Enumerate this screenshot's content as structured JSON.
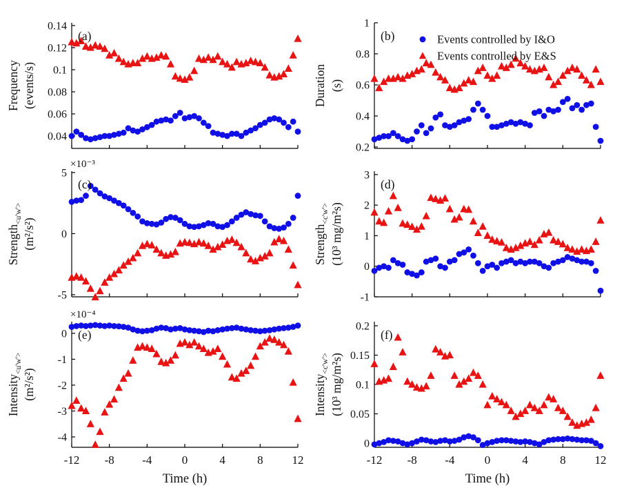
{
  "figure": {
    "colors": {
      "io_blue": "#1010E6",
      "es_red": "#E81414",
      "axis": "#000000",
      "background": "#FFFFFF"
    },
    "legend": {
      "items": [
        {
          "marker": "circle-icon",
          "label": "Events controlled by I&O"
        },
        {
          "marker": "triangle-icon",
          "label": "Events controlled by E&S"
        }
      ]
    },
    "x_axis": {
      "title": "Time (h)",
      "tick_values": [
        -12,
        -8,
        -4,
        0,
        4,
        8,
        12
      ],
      "tick_labels": [
        "-12",
        "-8",
        "-4",
        "0",
        "4",
        "8",
        "12"
      ]
    }
  },
  "chart_data": {
    "type": "scatter",
    "xlabel": "Time (h)",
    "series_names": [
      "Events controlled by I&O",
      "Events controlled by E&S"
    ],
    "x_hours": [
      -12,
      -11.5,
      -11,
      -10.5,
      -10,
      -9.5,
      -9,
      -8.5,
      -8,
      -7.5,
      -7,
      -6.5,
      -6,
      -5.5,
      -5,
      -4.5,
      -4,
      -3.5,
      -3,
      -2.5,
      -2,
      -1.5,
      -1,
      -0.5,
      0,
      0.5,
      1,
      1.5,
      2,
      2.5,
      3,
      3.5,
      4,
      4.5,
      5,
      5.5,
      6,
      6.5,
      7,
      7.5,
      8,
      8.5,
      9,
      9.5,
      10,
      10.5,
      11,
      11.5,
      12
    ],
    "panels": [
      {
        "id": "a",
        "letter": "(a)",
        "ylabel": "Frequency",
        "ylabel_sub": "",
        "ylabel_units": "(events/s)",
        "exponent": "",
        "ylim": [
          0.02875,
          0.1425
        ],
        "yticks": [
          0.04,
          0.06,
          0.08,
          0.1,
          0.12,
          0.14
        ],
        "ytick_labels": [
          "0.04",
          "0.06",
          "0.08",
          "0.1",
          "0.12",
          "0.14"
        ],
        "io": [
          0.04,
          0.044,
          0.041,
          0.038,
          0.037,
          0.038,
          0.039,
          0.04,
          0.04,
          0.041,
          0.042,
          0.043,
          0.047,
          0.045,
          0.044,
          0.046,
          0.048,
          0.05,
          0.053,
          0.054,
          0.055,
          0.054,
          0.058,
          0.061,
          0.056,
          0.057,
          0.058,
          0.056,
          0.052,
          0.049,
          0.043,
          0.042,
          0.041,
          0.04,
          0.042,
          0.042,
          0.04,
          0.043,
          0.045,
          0.047,
          0.05,
          0.052,
          0.055,
          0.056,
          0.055,
          0.052,
          0.048,
          0.053,
          0.044
        ],
        "es": [
          0.125,
          0.124,
          0.126,
          0.121,
          0.12,
          0.122,
          0.121,
          0.119,
          0.113,
          0.115,
          0.11,
          0.107,
          0.105,
          0.106,
          0.106,
          0.11,
          0.112,
          0.11,
          0.111,
          0.113,
          0.112,
          0.105,
          0.094,
          0.092,
          0.091,
          0.093,
          0.099,
          0.11,
          0.109,
          0.111,
          0.109,
          0.112,
          0.107,
          0.105,
          0.102,
          0.107,
          0.105,
          0.106,
          0.108,
          0.107,
          0.106,
          0.102,
          0.095,
          0.093,
          0.094,
          0.096,
          0.101,
          0.113,
          0.128
        ]
      },
      {
        "id": "b",
        "letter": "(b)",
        "ylabel": "Duration",
        "ylabel_sub": "",
        "ylabel_units": "(s)",
        "exponent": "",
        "ylim": [
          0.191,
          1.0
        ],
        "yticks": [
          0.2,
          0.4,
          0.6,
          0.8,
          1
        ],
        "ytick_labels": [
          "0.2",
          "0.4",
          "0.6",
          "0.8",
          "1"
        ],
        "io": [
          0.25,
          0.26,
          0.27,
          0.27,
          0.29,
          0.27,
          0.25,
          0.24,
          0.25,
          0.3,
          0.34,
          0.29,
          0.32,
          0.39,
          0.41,
          0.34,
          0.33,
          0.34,
          0.36,
          0.37,
          0.38,
          0.44,
          0.48,
          0.44,
          0.4,
          0.33,
          0.33,
          0.34,
          0.35,
          0.36,
          0.35,
          0.36,
          0.35,
          0.34,
          0.42,
          0.43,
          0.4,
          0.44,
          0.43,
          0.44,
          0.49,
          0.51,
          0.45,
          0.47,
          0.44,
          0.47,
          0.48,
          0.33,
          0.24
        ],
        "es": [
          0.64,
          0.58,
          0.62,
          0.64,
          0.64,
          0.65,
          0.64,
          0.66,
          0.67,
          0.69,
          0.7,
          0.74,
          0.73,
          0.68,
          0.65,
          0.63,
          0.58,
          0.57,
          0.58,
          0.61,
          0.63,
          0.62,
          0.69,
          0.71,
          0.66,
          0.64,
          0.66,
          0.72,
          0.71,
          0.73,
          0.77,
          0.74,
          0.72,
          0.7,
          0.69,
          0.7,
          0.71,
          0.65,
          0.6,
          0.62,
          0.66,
          0.69,
          0.71,
          0.7,
          0.66,
          0.63,
          0.6,
          0.7,
          0.62
        ]
      },
      {
        "id": "c",
        "letter": "(c)",
        "ylabel": "Strength",
        "ylabel_sub": "<u'w'>",
        "ylabel_units": "(m²/s²)",
        "exponent": "×10⁻³",
        "ylim": [
          -5.17,
          5.11
        ],
        "yticks": [
          -5,
          0,
          5
        ],
        "ytick_labels": [
          "-5",
          "0",
          "5"
        ],
        "io": [
          2.6,
          2.7,
          2.75,
          3.1,
          3.9,
          3.6,
          3.3,
          3.05,
          2.9,
          2.7,
          2.5,
          2.3,
          2.0,
          1.7,
          1.4,
          1.0,
          0.85,
          0.8,
          0.75,
          0.9,
          1.2,
          1.35,
          1.3,
          1.1,
          0.8,
          0.6,
          0.55,
          0.6,
          0.7,
          0.85,
          0.8,
          0.6,
          0.55,
          0.7,
          1.0,
          1.3,
          1.55,
          1.75,
          1.6,
          1.5,
          1.45,
          1.0,
          0.6,
          0.45,
          0.4,
          0.5,
          0.8,
          1.3,
          3.1
        ],
        "es": [
          -3.6,
          -3.5,
          -3.6,
          -3.9,
          -4.5,
          -5.2,
          -4.7,
          -4.0,
          -3.6,
          -3.3,
          -3.0,
          -2.6,
          -2.3,
          -2.0,
          -1.6,
          -1.0,
          -0.85,
          -0.95,
          -1.3,
          -1.6,
          -1.8,
          -1.7,
          -1.5,
          -0.8,
          -0.7,
          -0.75,
          -0.85,
          -0.7,
          -0.8,
          -1.0,
          -1.3,
          -1.1,
          -0.9,
          -0.6,
          -0.5,
          -0.75,
          -1.1,
          -1.6,
          -2.1,
          -2.25,
          -2.0,
          -1.85,
          -1.6,
          -0.7,
          -0.45,
          -0.6,
          -1.3,
          -2.6,
          -4.2
        ]
      },
      {
        "id": "d",
        "letter": "(d)",
        "ylabel": "Strength",
        "ylabel_sub": "<c'w'>",
        "ylabel_units": "(10³ mg/m²s)",
        "exponent": "",
        "ylim": [
          -1.0,
          3.11
        ],
        "yticks": [
          -1,
          0,
          1,
          2,
          3
        ],
        "ytick_labels": [
          "-1",
          "0",
          "1",
          "2",
          "3"
        ],
        "io": [
          -0.15,
          -0.05,
          0.0,
          -0.05,
          0.2,
          0.1,
          0.05,
          -0.2,
          -0.25,
          -0.3,
          -0.2,
          0.15,
          0.2,
          0.25,
          0.0,
          -0.05,
          0.15,
          0.2,
          0.4,
          0.45,
          0.55,
          0.35,
          0.1,
          -0.15,
          0.0,
          0.05,
          -0.05,
          0.1,
          0.15,
          0.2,
          0.1,
          0.15,
          0.1,
          0.15,
          0.15,
          0.1,
          0.0,
          -0.05,
          0.1,
          0.15,
          0.2,
          0.3,
          0.25,
          0.2,
          0.15,
          0.15,
          0.1,
          -0.15,
          -0.8
        ],
        "es": [
          1.76,
          1.47,
          1.42,
          1.8,
          2.3,
          1.91,
          1.4,
          1.36,
          1.29,
          1.2,
          1.3,
          1.64,
          2.24,
          2.2,
          2.15,
          2.22,
          1.87,
          1.53,
          1.6,
          1.87,
          1.85,
          1.47,
          1.09,
          1.3,
          1.0,
          0.87,
          0.82,
          0.78,
          0.6,
          0.55,
          0.6,
          0.67,
          0.75,
          0.8,
          0.7,
          0.85,
          1.05,
          1.1,
          0.85,
          0.8,
          0.72,
          0.6,
          0.55,
          0.48,
          0.55,
          0.5,
          0.55,
          0.8,
          1.5
        ]
      },
      {
        "id": "e",
        "letter": "(e)",
        "ylabel": "Intensity",
        "ylabel_sub": "<u'w'>",
        "ylabel_units": "(m²/s²)",
        "exponent": "×10⁻⁴",
        "ylim": [
          -4.4,
          0.45
        ],
        "yticks": [
          -4,
          -3,
          -2,
          -1,
          0
        ],
        "ytick_labels": [
          "-4",
          "-3",
          "-2",
          "-1",
          "0"
        ],
        "io": [
          0.25,
          0.28,
          0.3,
          0.28,
          0.3,
          0.32,
          0.3,
          0.28,
          0.3,
          0.28,
          0.27,
          0.25,
          0.22,
          0.15,
          0.1,
          0.08,
          0.1,
          0.12,
          0.18,
          0.22,
          0.2,
          0.15,
          0.18,
          0.2,
          0.15,
          0.12,
          0.1,
          0.08,
          0.05,
          0.1,
          0.08,
          0.12,
          0.15,
          0.18,
          0.2,
          0.22,
          0.18,
          0.15,
          0.12,
          0.1,
          0.08,
          0.1,
          0.12,
          0.15,
          0.18,
          0.2,
          0.22,
          0.25,
          0.3
        ],
        "es": [
          -2.8,
          -2.6,
          -2.9,
          -3.0,
          -3.5,
          -4.3,
          -3.8,
          -3.05,
          -2.75,
          -2.55,
          -2.1,
          -1.75,
          -1.55,
          -1.05,
          -0.55,
          -0.5,
          -0.55,
          -0.6,
          -0.8,
          -1.1,
          -1.15,
          -1.05,
          -0.85,
          -0.4,
          -0.35,
          -0.45,
          -0.35,
          -0.5,
          -0.6,
          -0.75,
          -0.7,
          -0.6,
          -0.9,
          -1.2,
          -1.7,
          -1.75,
          -1.55,
          -1.45,
          -1.25,
          -0.9,
          -0.5,
          -0.35,
          -0.2,
          -0.25,
          -0.35,
          -0.45,
          -0.7,
          -1.9,
          -3.3
        ]
      },
      {
        "id": "f",
        "letter": "(f)",
        "ylabel": "Intensity",
        "ylabel_sub": "<c'w'>",
        "ylabel_units": "(10³ mg/m²s)",
        "exponent": "",
        "ylim": [
          -0.007,
          0.207
        ],
        "yticks": [
          0,
          0.05,
          0.1,
          0.15,
          0.2
        ],
        "ytick_labels": [
          "0",
          "0.05",
          "0.1",
          "0.15",
          "0.2"
        ],
        "io": [
          -0.002,
          0.0,
          0.002,
          0.005,
          0.004,
          0.003,
          0.0,
          -0.002,
          0.0,
          0.003,
          0.006,
          0.005,
          0.003,
          0.002,
          0.004,
          0.005,
          0.003,
          0.004,
          0.006,
          0.01,
          0.012,
          0.01,
          0.005,
          -0.003,
          0.0,
          0.002,
          0.004,
          0.005,
          0.005,
          0.004,
          0.003,
          0.002,
          0.003,
          0.002,
          0.0,
          -0.002,
          0.002,
          0.005,
          0.006,
          0.007,
          0.007,
          0.008,
          0.007,
          0.006,
          0.005,
          0.005,
          0.004,
          0.0,
          -0.005
        ],
        "es": [
          0.135,
          0.105,
          0.107,
          0.11,
          0.13,
          0.18,
          0.155,
          0.105,
          0.1,
          0.095,
          0.093,
          0.097,
          0.115,
          0.16,
          0.155,
          0.148,
          0.15,
          0.115,
          0.1,
          0.105,
          0.11,
          0.12,
          0.115,
          0.1,
          0.065,
          0.08,
          0.075,
          0.07,
          0.065,
          0.055,
          0.045,
          0.05,
          0.055,
          0.065,
          0.06,
          0.055,
          0.065,
          0.078,
          0.075,
          0.06,
          0.055,
          0.045,
          0.035,
          0.03,
          0.033,
          0.035,
          0.04,
          0.06,
          0.115
        ]
      }
    ]
  }
}
